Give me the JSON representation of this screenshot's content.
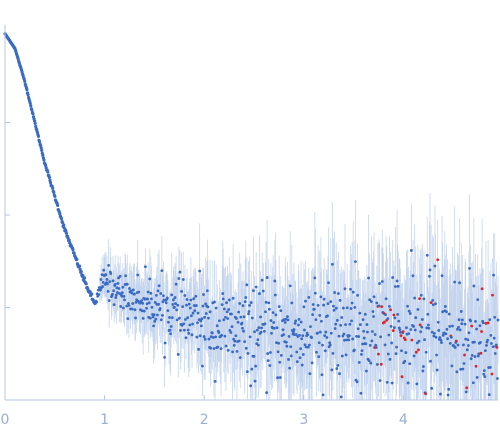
{
  "chart_data": {
    "type": "scatter",
    "title": "",
    "xlabel": "",
    "ylabel": "",
    "xlim": [
      0,
      4.95
    ],
    "ylim": [
      0,
      1.0
    ],
    "x_ticks": [
      "0",
      "1",
      "2",
      "3",
      "4"
    ],
    "x_tick_values": [
      0,
      1,
      2,
      3,
      4
    ],
    "y_tick_values": [
      0.25,
      0.5,
      0.75
    ],
    "grid": false,
    "colors": {
      "points": "#3a6bc4",
      "outliers": "#e0222a",
      "errorbars": "#c5d5ee",
      "axis": "#b7c7e6",
      "tick_text": "#9aaed6"
    },
    "curve": {
      "description_points": [
        [
          0.0,
          0.99
        ],
        [
          0.1,
          0.95
        ],
        [
          0.2,
          0.86
        ],
        [
          0.3,
          0.75
        ],
        [
          0.4,
          0.64
        ],
        [
          0.5,
          0.55
        ],
        [
          0.6,
          0.46
        ],
        [
          0.7,
          0.39
        ],
        [
          0.8,
          0.32
        ],
        [
          0.9,
          0.26
        ],
        [
          1.0,
          0.33
        ],
        [
          1.1,
          0.3
        ],
        [
          1.25,
          0.28
        ],
        [
          1.5,
          0.26
        ],
        [
          1.75,
          0.23
        ],
        [
          2.0,
          0.21
        ],
        [
          2.25,
          0.19
        ],
        [
          2.5,
          0.18
        ],
        [
          2.75,
          0.18
        ],
        [
          3.0,
          0.18
        ],
        [
          3.25,
          0.18
        ],
        [
          3.5,
          0.19
        ],
        [
          3.75,
          0.19
        ],
        [
          4.0,
          0.19
        ],
        [
          4.25,
          0.18
        ],
        [
          4.5,
          0.17
        ],
        [
          4.75,
          0.17
        ],
        [
          4.95,
          0.17
        ]
      ],
      "noise_by_x": [
        [
          0.0,
          0.0
        ],
        [
          0.9,
          0.004
        ],
        [
          1.0,
          0.02
        ],
        [
          1.5,
          0.035
        ],
        [
          2.0,
          0.05
        ],
        [
          3.0,
          0.07
        ],
        [
          4.0,
          0.08
        ],
        [
          4.95,
          0.09
        ]
      ],
      "outlier_x_start": 3.6,
      "n_points": 900
    }
  }
}
